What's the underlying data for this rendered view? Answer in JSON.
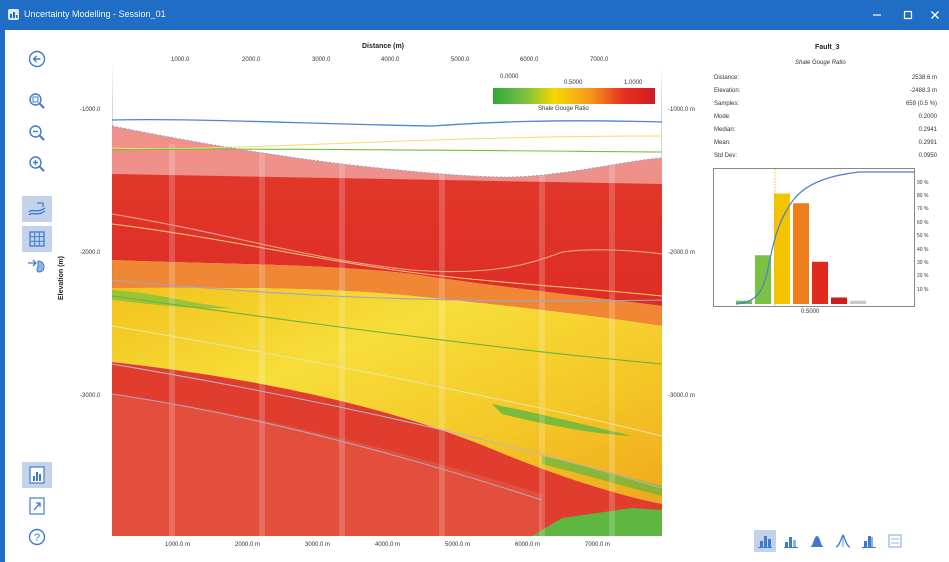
{
  "window": {
    "title": "Uncertainty Modelling - Session_01"
  },
  "plot": {
    "x_title": "Distance (m)",
    "y_title": "Elevation (m)",
    "top_ticks": [
      "1000.0",
      "2000.0",
      "3000.0",
      "4000.0",
      "5000.0",
      "6000.0",
      "7000.0"
    ],
    "bottom_ticks": [
      "1000.0 m",
      "2000.0 m",
      "3000.0 m",
      "4000.0 m",
      "5000.0 m",
      "6000.0 m",
      "7000.0 m"
    ],
    "left_ticks": [
      "-1000.0",
      "-2000.0",
      "-3000.0"
    ],
    "right_ticks": [
      "-1000.0 m",
      "-2000.0 m",
      "-3000.0 m"
    ],
    "legend": {
      "min": "0.0000",
      "mid": "0.5000",
      "max": "1.0000",
      "label": "Shale Gouge Ratio"
    }
  },
  "info": {
    "title": "Fault_3",
    "subtitle": "Shale Gouge Ratio",
    "rows": [
      {
        "label": "Distance:",
        "value": "2538.6 m"
      },
      {
        "label": "Elevation:",
        "value": "-2488.3 m"
      },
      {
        "label": "Samples:",
        "value": "659 (0.5 %)"
      },
      {
        "label": "Mode:",
        "value": "0.2000"
      },
      {
        "label": "Median:",
        "value": "0.2941"
      },
      {
        "label": "Mean:",
        "value": "0.2991"
      },
      {
        "label": "Std Dev:",
        "value": "0.0950"
      }
    ]
  },
  "histogram": {
    "percent_ticks": [
      "90 %",
      "80 %",
      "70 %",
      "60 %",
      "50 %",
      "40 %",
      "30 %",
      "20 %",
      "10 %"
    ],
    "x_tick": "0.5000",
    "bars": [
      {
        "value": 0.01,
        "color": "#6abf4b"
      },
      {
        "value": 0.15,
        "color": "#7cc242"
      },
      {
        "value": 0.34,
        "color": "#f5c400"
      },
      {
        "value": 0.31,
        "color": "#ee7d1b"
      },
      {
        "value": 0.13,
        "color": "#e02a1e"
      },
      {
        "value": 0.02,
        "color": "#cc1d1d"
      },
      {
        "value": 0.01,
        "color": "#c8c8c8"
      }
    ]
  },
  "colors": {
    "titlebar": "#1f6dc4",
    "icon": "#3d7bd1"
  },
  "icons": {
    "left_toolbar": [
      "back-arrow-icon",
      "zoom-fit-icon",
      "zoom-out-icon",
      "zoom-in-icon",
      "horizons-icon",
      "grid-icon",
      "pick-icon",
      "chart-panel-icon",
      "export-icon",
      "help-icon"
    ],
    "bottom_toolbar": [
      "histogram-icon",
      "stacked-histogram-icon",
      "distribution-icon",
      "cumulative-icon",
      "percentile-icon",
      "settings-icon"
    ]
  }
}
